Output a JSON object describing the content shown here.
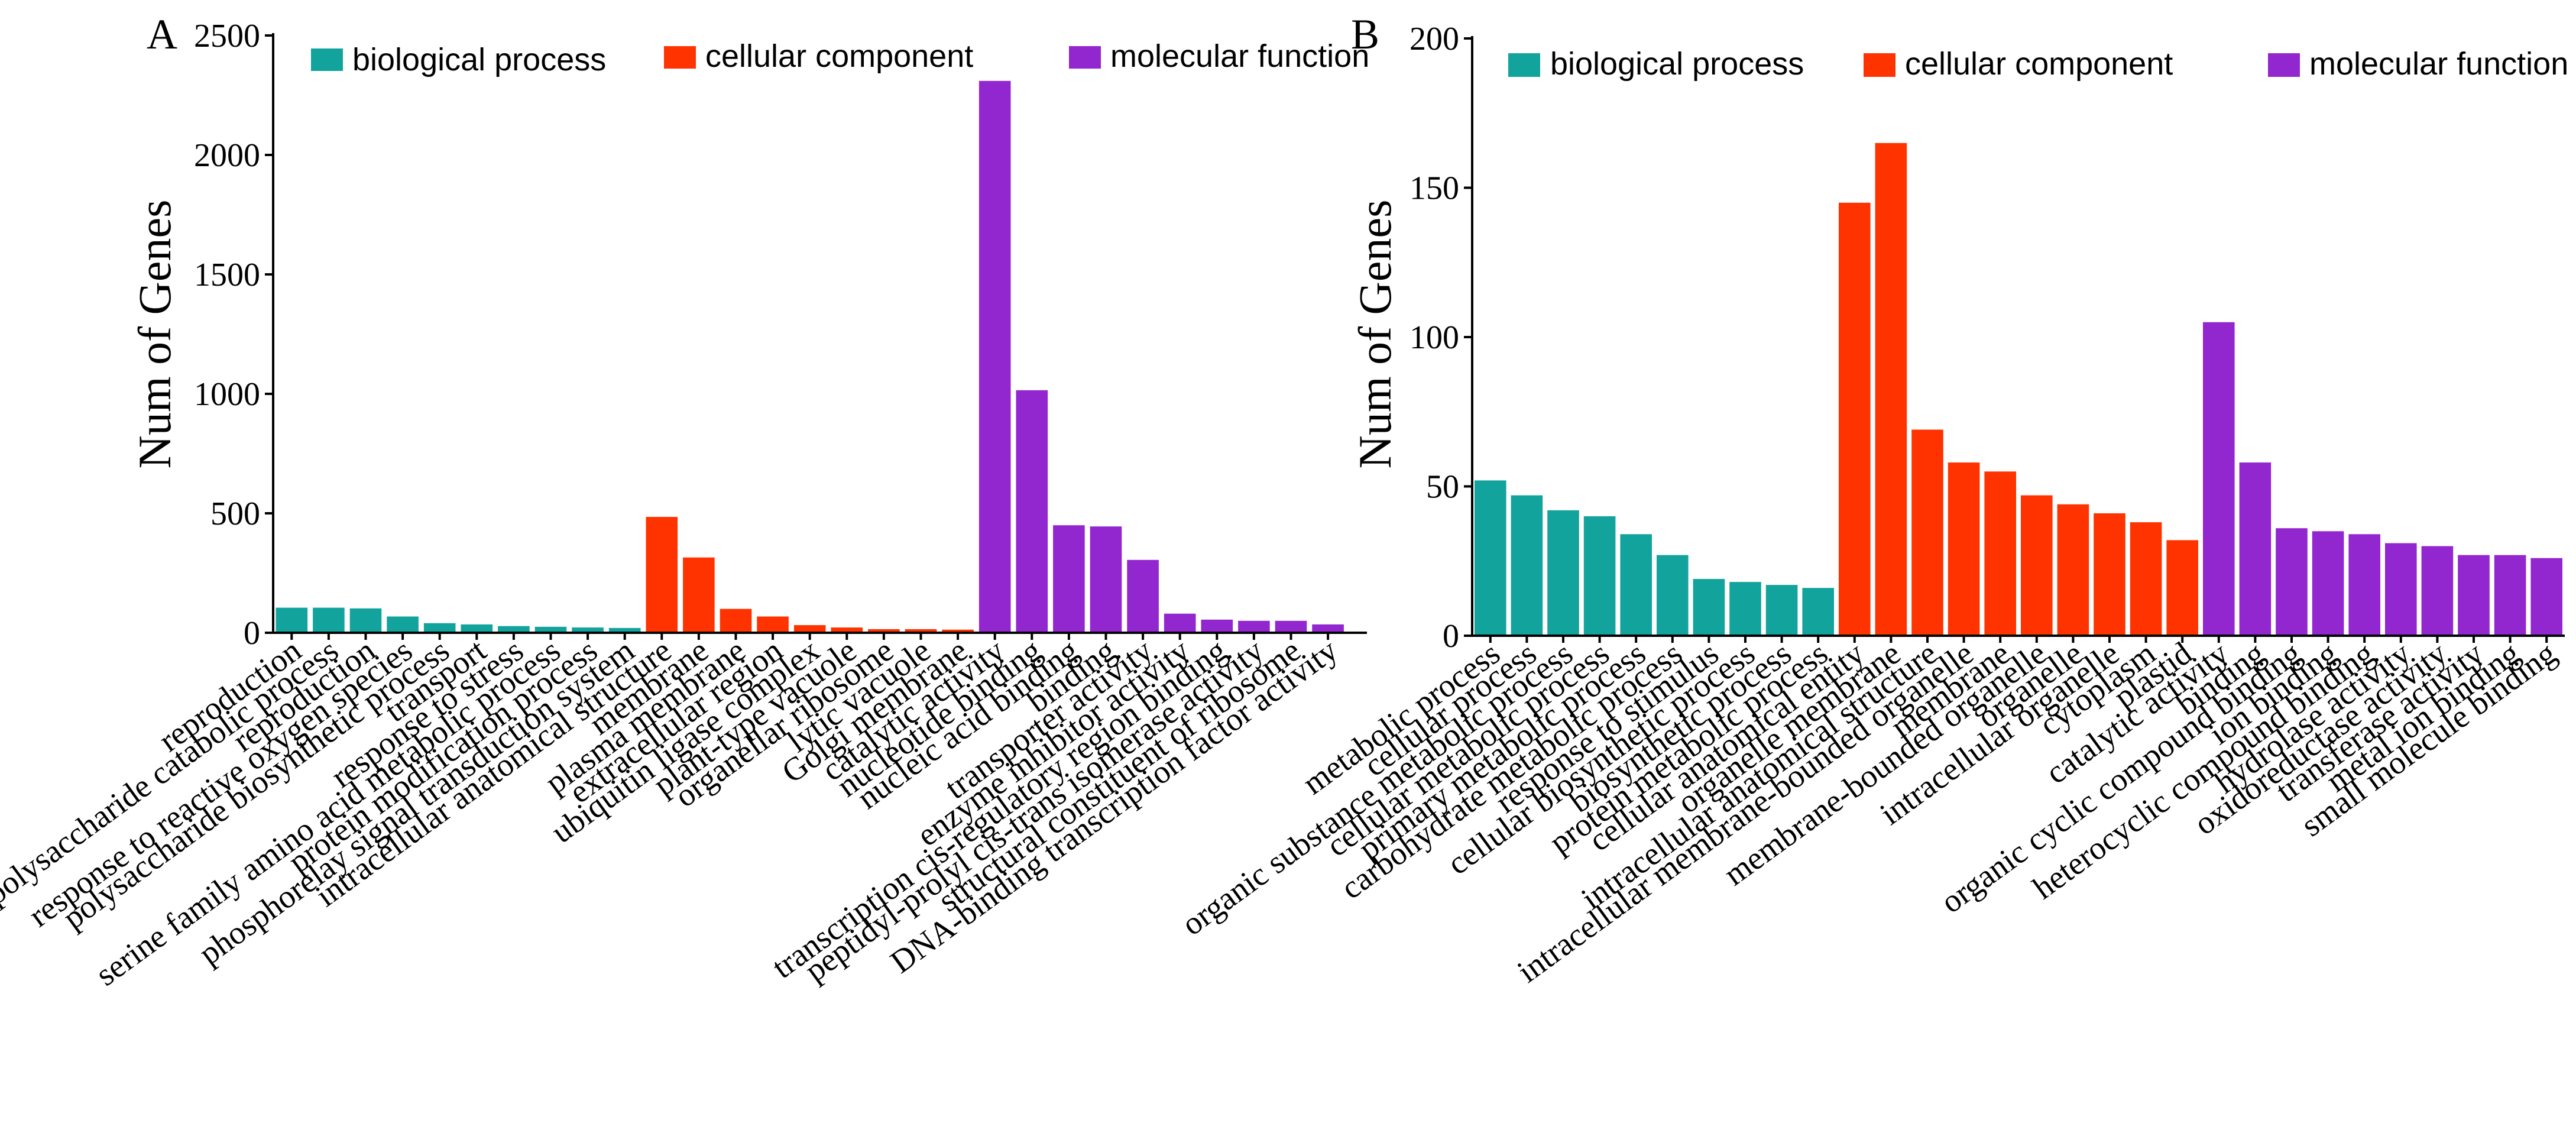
{
  "colors": {
    "biological_process": "#13A39D",
    "cellular_component": "#FF3300",
    "molecular_function": "#9226CF"
  },
  "chart_data": [
    {
      "panel": "A",
      "type": "bar",
      "title": "",
      "xlabel": "",
      "ylabel": "Num of Genes",
      "ylim": [
        0,
        2500
      ],
      "yticks": [
        0,
        500,
        1000,
        1500,
        2000,
        2500
      ],
      "grid": false,
      "legend_position": "top",
      "legend": [
        "biological process",
        "cellular component",
        "molecular function"
      ],
      "categories": [
        "reproduction",
        "polysaccharide catabolic process",
        "reproduction",
        "response to reactive oxygen species",
        "polysaccharide biosynthetic process",
        "transport",
        "response to stress",
        "serine family amino acid metabolic process",
        "protein modification process",
        "phosphorelay signal transduction system",
        "intracellular anatomical structure",
        "membrane",
        "plasma membrane",
        "extracellular region",
        "ubiquitin ligase complex",
        "plant-type vacuole",
        "organellar ribosome",
        "lytic vacuole",
        "Golgi membrane",
        "catalytic activity",
        "nucleotide binding",
        "nucleic acid binding",
        "binding",
        "transporter activity",
        "enzyme inhibitor activity",
        "transcription cis-regulatory region binding",
        "peptidyl-prolyl cis-trans isomerase activity",
        "structural constituent of ribosome",
        "DNA-binding transcription factor activity"
      ],
      "groups": [
        "biological_process",
        "biological_process",
        "biological_process",
        "biological_process",
        "biological_process",
        "biological_process",
        "biological_process",
        "biological_process",
        "biological_process",
        "biological_process",
        "cellular_component",
        "cellular_component",
        "cellular_component",
        "cellular_component",
        "cellular_component",
        "cellular_component",
        "cellular_component",
        "cellular_component",
        "cellular_component",
        "molecular_function",
        "molecular_function",
        "molecular_function",
        "molecular_function",
        "molecular_function",
        "molecular_function",
        "molecular_function",
        "molecular_function",
        "molecular_function",
        "molecular_function"
      ],
      "values": [
        105,
        105,
        102,
        68,
        40,
        35,
        28,
        25,
        22,
        20,
        485,
        315,
        100,
        68,
        32,
        22,
        15,
        15,
        13,
        2310,
        1015,
        450,
        445,
        305,
        80,
        55,
        50,
        50,
        35
      ]
    },
    {
      "panel": "B",
      "type": "bar",
      "title": "",
      "xlabel": "",
      "ylabel": "Num of Genes",
      "ylim": [
        0,
        200
      ],
      "yticks": [
        0,
        50,
        100,
        150,
        200
      ],
      "grid": false,
      "legend_position": "top",
      "legend": [
        "biological process",
        "cellular component",
        "molecular function"
      ],
      "categories": [
        "metabolic process",
        "cellular process",
        "organic substance metabolic process",
        "cellular metabolic process",
        "primary metabolic process",
        "carbohydrate metabolic process",
        "response to stimulus",
        "cellular biosynthetic process",
        "biosynthetic process",
        "protein metabolic process",
        "cellular anatomical entity",
        "organelle membrane",
        "intracellular anatomical structure",
        "intracellular membrane-bounded organelle",
        "membrane",
        "membrane-bounded organelle",
        "organelle",
        "intracellular organelle",
        "cytoplasm",
        "plastid",
        "catalytic activity",
        "binding",
        "organic cyclic compound binding",
        "ion binding",
        "heterocyclic compound binding",
        "hydrolase activity",
        "oxidoreductase activity",
        "transferase activity",
        "metal ion binding",
        "small molecule binding"
      ],
      "groups": [
        "biological_process",
        "biological_process",
        "biological_process",
        "biological_process",
        "biological_process",
        "biological_process",
        "biological_process",
        "biological_process",
        "biological_process",
        "biological_process",
        "cellular_component",
        "cellular_component",
        "cellular_component",
        "cellular_component",
        "cellular_component",
        "cellular_component",
        "cellular_component",
        "cellular_component",
        "cellular_component",
        "cellular_component",
        "molecular_function",
        "molecular_function",
        "molecular_function",
        "molecular_function",
        "molecular_function",
        "molecular_function",
        "molecular_function",
        "molecular_function",
        "molecular_function",
        "molecular_function"
      ],
      "values": [
        52,
        47,
        42,
        40,
        34,
        27,
        19,
        18,
        17,
        16,
        145,
        165,
        69,
        58,
        55,
        47,
        44,
        41,
        38,
        32,
        105,
        58,
        36,
        35,
        34,
        31,
        30,
        27,
        27,
        26
      ]
    }
  ]
}
